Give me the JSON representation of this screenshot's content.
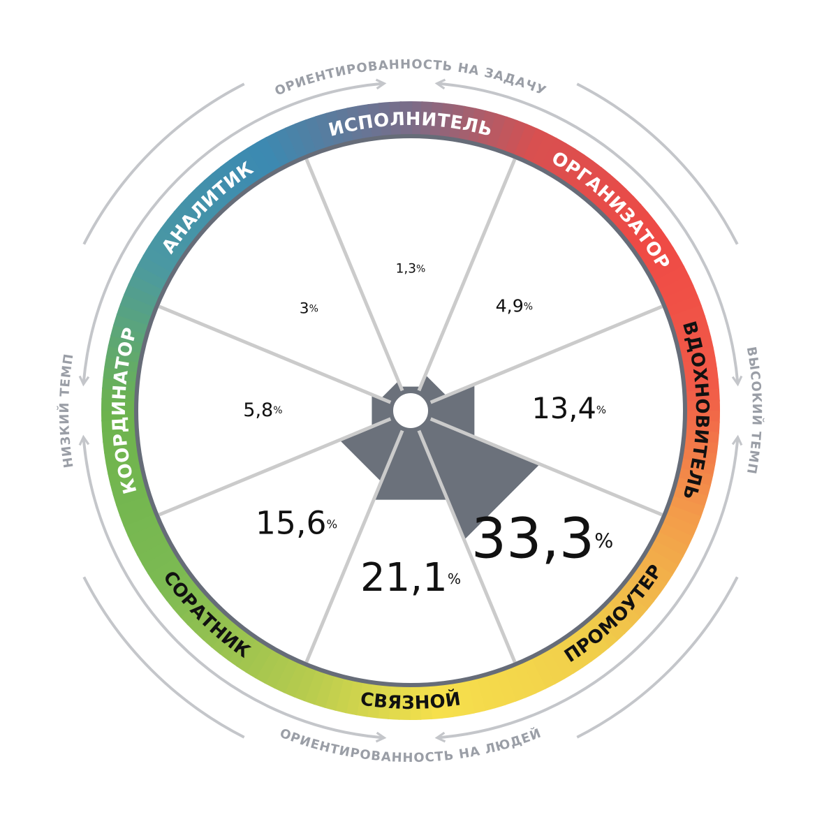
{
  "chart_data": {
    "type": "polar",
    "categories": [
      "ИСПОЛНИТЕЛЬ",
      "ОРГАНИЗАТОР",
      "ВДОХНОВИТЕЛЬ",
      "ПРОМОУТЕР",
      "СВЯЗНОЙ",
      "СОРАТНИК",
      "КООРДИНАТОР",
      "АНАЛИТИК"
    ],
    "values": [
      1.3,
      4.9,
      13.4,
      33.3,
      21.1,
      15.6,
      5.8,
      3
    ],
    "value_labels": [
      "1,3%",
      "4,9%",
      "13,4%",
      "33,3%",
      "21,1%",
      "15,6%",
      "5,8%",
      "3%"
    ],
    "color": "#6b717b",
    "label_colors": [
      "#ffffff",
      "#ffffff",
      "#111111",
      "#111111",
      "#111111",
      "#111111",
      "#ffffff",
      "#ffffff"
    ],
    "top_label": "ОРИЕНТИРОВАННОСТЬ НА ЗАДАЧУ",
    "bottom_label": "ОРИЕНТИРОВАННОСТЬ НА ЛЮДЕЙ",
    "left_label": "НИЗКИЙ ТЕМП",
    "right_label": "ВЫСОКИЙ ТЕМП"
  }
}
